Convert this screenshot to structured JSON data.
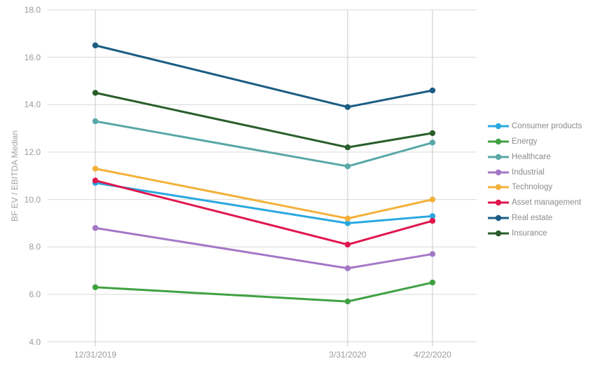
{
  "chart_data": {
    "type": "line",
    "title": "",
    "xlabel": "",
    "ylabel": "BF EV / EBITDA Median",
    "x_categories": [
      "12/31/2019",
      "3/31/2020",
      "4/22/2020"
    ],
    "y_ticks": [
      "18.0",
      "16.0",
      "14.0",
      "12.0",
      "10.0",
      "8.0",
      "6.0",
      "4.0"
    ],
    "ylim": [
      4.0,
      18.0
    ],
    "grid": true,
    "legend_position": "right",
    "series": [
      {
        "name": "Consumer products",
        "color": "#29A8E0",
        "values": [
          10.7,
          9.0,
          9.3
        ]
      },
      {
        "name": "Energy",
        "color": "#3FA142",
        "values": [
          6.3,
          5.7,
          6.5
        ]
      },
      {
        "name": "Healthcare",
        "color": "#5AA7A7",
        "values": [
          13.3,
          11.4,
          12.4
        ]
      },
      {
        "name": "Industrial",
        "color": "#A477C6",
        "values": [
          8.8,
          7.1,
          7.7
        ]
      },
      {
        "name": "Technology",
        "color": "#F3B13B",
        "values": [
          11.3,
          9.2,
          10.0
        ]
      },
      {
        "name": "Asset management",
        "color": "#E0164E",
        "values": [
          10.8,
          8.1,
          9.1
        ]
      },
      {
        "name": "Real estate",
        "color": "#1B5D84",
        "values": [
          16.5,
          13.9,
          14.6
        ]
      },
      {
        "name": "Insurance",
        "color": "#2A5D2C",
        "values": [
          14.5,
          12.2,
          12.8
        ]
      }
    ],
    "theme": {
      "background": "#ffffff",
      "axis_text": "#9b9b9b",
      "title_text": "#a3a3a3",
      "legend_text": "#8c8c8c",
      "grid_line": "#d9d9d9",
      "category_line": "#c9c9c9"
    }
  }
}
